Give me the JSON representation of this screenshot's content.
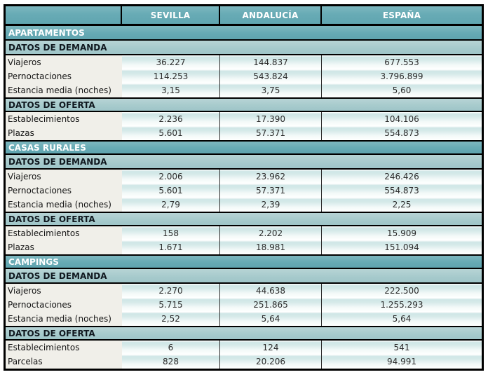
{
  "chart_data": {
    "type": "table",
    "title": "",
    "columns": [
      "SEVILLA",
      "ANDALUCÍA",
      "ESPAÑA"
    ],
    "row_label_column": "",
    "sections": [
      {
        "title": "APARTAMENTOS",
        "groups": [
          {
            "title": "DATOS DE DEMANDA",
            "rows": [
              {
                "label": "Viajeros",
                "values": [
                  "36.227",
                  "144.837",
                  "677.553"
                ]
              },
              {
                "label": "Pernoctaciones",
                "values": [
                  "114.253",
                  "543.824",
                  "3.796.899"
                ]
              },
              {
                "label": "Estancia media (noches)",
                "values": [
                  "3,15",
                  "3,75",
                  "5,60"
                ]
              }
            ]
          },
          {
            "title": "DATOS DE OFERTA",
            "rows": [
              {
                "label": "Establecimientos",
                "values": [
                  "2.236",
                  "17.390",
                  "104.106"
                ]
              },
              {
                "label": "Plazas",
                "values": [
                  "5.601",
                  "57.371",
                  "554.873"
                ]
              }
            ]
          }
        ]
      },
      {
        "title": "CASAS RURALES",
        "groups": [
          {
            "title": "DATOS DE DEMANDA",
            "rows": [
              {
                "label": "Viajeros",
                "values": [
                  "2.006",
                  "23.962",
                  "246.426"
                ]
              },
              {
                "label": "Pernoctaciones",
                "values": [
                  "5.601",
                  "57.371",
                  "554.873"
                ]
              },
              {
                "label": "Estancia media (noches)",
                "values": [
                  "2,79",
                  "2,39",
                  "2,25"
                ]
              }
            ]
          },
          {
            "title": "DATOS DE OFERTA",
            "rows": [
              {
                "label": "Establecimientos",
                "values": [
                  "158",
                  "2.202",
                  "15.909"
                ]
              },
              {
                "label": "Plazas",
                "values": [
                  "1.671",
                  "18.981",
                  "151.094"
                ]
              }
            ]
          }
        ]
      },
      {
        "title": "CAMPINGS",
        "groups": [
          {
            "title": "DATOS DE DEMANDA",
            "rows": [
              {
                "label": "Viajeros",
                "values": [
                  "2.270",
                  "44.638",
                  "222.500"
                ]
              },
              {
                "label": "Pernoctaciones",
                "values": [
                  "5.715",
                  "251.865",
                  "1.255.293"
                ]
              },
              {
                "label": "Estancia media (noches)",
                "values": [
                  "2,52",
                  "5,64",
                  "5,64"
                ]
              }
            ]
          },
          {
            "title": "DATOS DE OFERTA",
            "rows": [
              {
                "label": "Establecimientos",
                "values": [
                  "6",
                  "124",
                  "541"
                ]
              },
              {
                "label": "Parcelas",
                "values": [
                  "828",
                  "20.206",
                  "94.991"
                ]
              }
            ]
          }
        ]
      }
    ],
    "colors": {
      "header_teal": "#68ABB5",
      "subheader_teal": "#A6CACC",
      "value_cell_tint": "#D6EAE9",
      "label_cell_bg": "#F0EFE9",
      "border": "#000000",
      "header_text": "#FFFFFF",
      "body_text": "#2B2B2B"
    },
    "layout": {
      "grid": "black ruled bands",
      "value_alignment": "center"
    }
  }
}
